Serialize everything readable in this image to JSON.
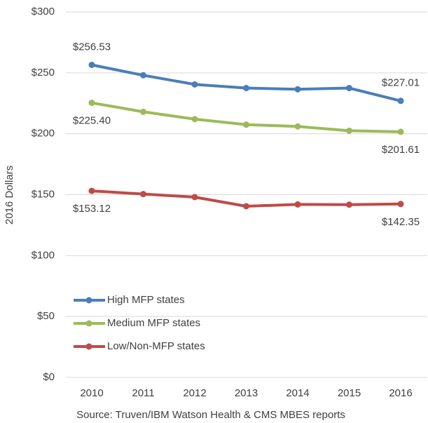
{
  "chart_data": {
    "type": "line",
    "y_label": "2016 Dollars",
    "caption": "Source: Truven/IBM Watson Health & CMS MBES reports",
    "categories": [
      "2010",
      "2011",
      "2012",
      "2013",
      "2014",
      "2015",
      "2016"
    ],
    "series": [
      {
        "name": "High MFP states",
        "color": "#4a7ebb",
        "values": [
          256.53,
          248,
          240.5,
          237.5,
          236.5,
          237.5,
          227.01
        ],
        "value_labels": [
          "$256.53",
          null,
          null,
          null,
          null,
          null,
          "$227.01"
        ]
      },
      {
        "name": "Medium MFP states",
        "color": "#9bbb59",
        "values": [
          225.4,
          218,
          212,
          207.5,
          206,
          202.5,
          201.61
        ],
        "value_labels": [
          "$225.40",
          null,
          null,
          null,
          null,
          null,
          "$201.61"
        ]
      },
      {
        "name": "Low/Non-MFP states",
        "color": "#be4b48",
        "values": [
          153.12,
          150.5,
          148,
          140.5,
          142,
          141.8,
          142.35
        ],
        "value_labels": [
          "$153.12",
          null,
          null,
          null,
          null,
          null,
          "$142.35"
        ]
      }
    ],
    "ylim": [
      0,
      300
    ],
    "yticks": [
      {
        "value": 0,
        "label": "$0"
      },
      {
        "value": 50,
        "label": "$50"
      },
      {
        "value": 100,
        "label": "$100"
      },
      {
        "value": 150,
        "label": "$150"
      },
      {
        "value": 200,
        "label": "$200"
      },
      {
        "value": 250,
        "label": "$250"
      },
      {
        "value": 300,
        "label": "$300"
      }
    ],
    "grid": true,
    "legend": "lower left"
  }
}
